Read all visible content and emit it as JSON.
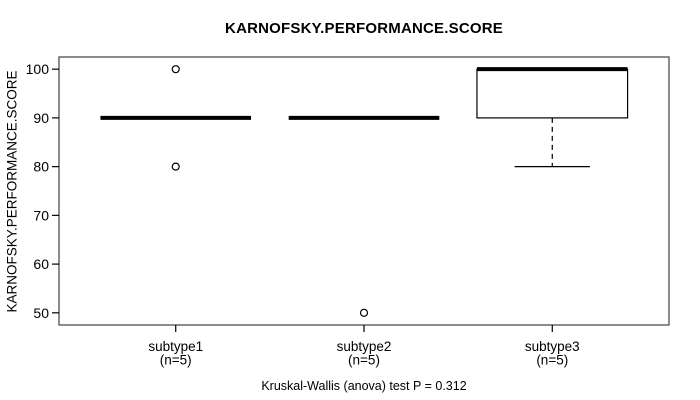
{
  "chart_data": {
    "type": "boxplot",
    "title": "KARNOFSKY.PERFORMANCE.SCORE",
    "ylabel": "KARNOFSKY.PERFORMANCE.SCORE",
    "footer": "Kruskal-Wallis (anova) test P = 0.312",
    "ylim": [
      47.5,
      102.5
    ],
    "yticks": [
      50,
      60,
      70,
      80,
      90,
      100
    ],
    "grid": false,
    "groups": [
      {
        "label": "subtype1",
        "sublabel": "(n=5)",
        "q1": 90,
        "median": 90,
        "q3": 90,
        "whisker_low": 90,
        "whisker_high": 90,
        "outliers": [
          100,
          80
        ]
      },
      {
        "label": "subtype2",
        "sublabel": "(n=5)",
        "q1": 90,
        "median": 90,
        "q3": 90,
        "whisker_low": 90,
        "whisker_high": 90,
        "outliers": [
          50
        ]
      },
      {
        "label": "subtype3",
        "sublabel": "(n=5)",
        "q1": 90,
        "median": 100,
        "q3": 100,
        "whisker_low": 80,
        "whisker_high": 100,
        "outliers": []
      }
    ],
    "colors": {
      "background": "#ffffff",
      "text": "#000000",
      "box_stroke": "#000000",
      "median_stroke": "#000000",
      "plot_border": "#4d4d4d"
    }
  }
}
